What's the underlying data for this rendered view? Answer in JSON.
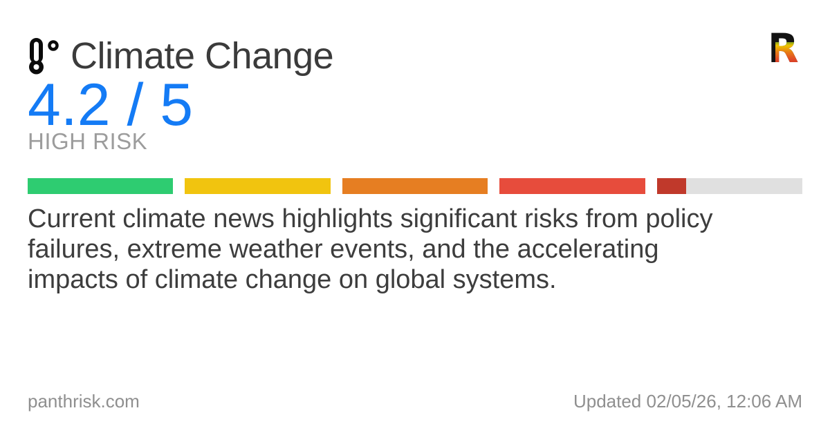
{
  "colors": {
    "background": "#ffffff",
    "title_text": "#3b3b3b",
    "score_blue": "#147bf5",
    "risk_label_gray": "#9c9c9c",
    "description_text": "#3d3d3d",
    "footer_gray": "#8f8f8f",
    "icon_black": "#0b0b0b"
  },
  "header": {
    "icon": "thermometer-icon",
    "title": "Climate Change",
    "logo_letter": "R"
  },
  "score": {
    "value": 4.2,
    "max": 5,
    "display": "4.2 / 5",
    "risk_label": "HIGH RISK"
  },
  "risk_bar": {
    "value": 4.2,
    "max": 5,
    "segment_count": 5,
    "segment_colors": [
      "#2ecc71",
      "#f1c40f",
      "#e67e22",
      "#e74c3c",
      "#c0392b"
    ],
    "segment_fills": [
      1,
      1,
      1,
      1,
      0.2
    ],
    "track_color": "#e0e0e0"
  },
  "description": {
    "text": "Current climate news highlights significant risks from policy failures, extreme weather events, and the accelerating impacts of climate change on global systems.",
    "lines": [
      "Current climate news highlights significant risks from policy",
      "failures, extreme weather events, and the accelerating",
      "impacts of climate change on global systems."
    ]
  },
  "footer": {
    "site": "panthrisk.com",
    "updated": "Updated 02/05/26, 12:06 AM"
  }
}
